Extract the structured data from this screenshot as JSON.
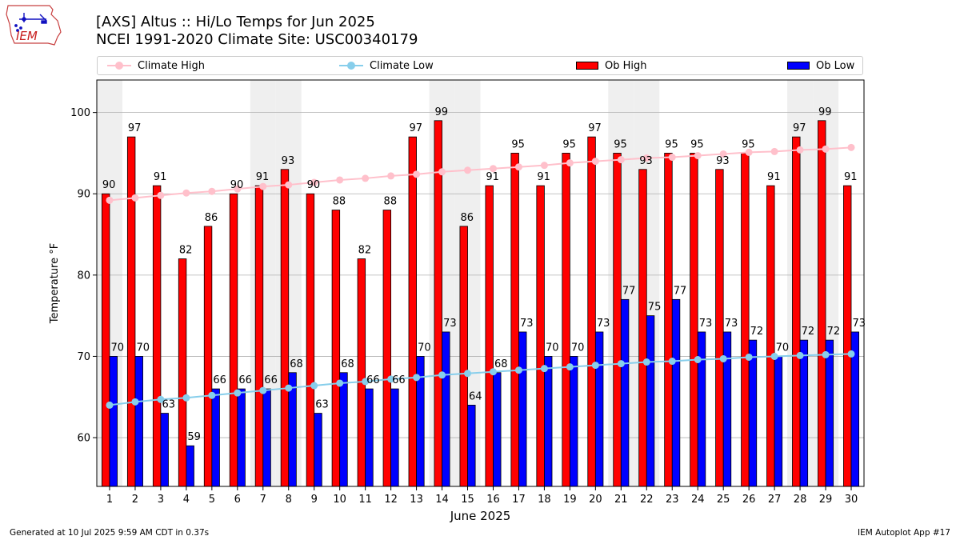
{
  "header": {
    "logo_text": "IEM",
    "title_line1": "[AXS] Altus :: Hi/Lo Temps for Jun 2025",
    "title_line2": "NCEI 1991-2020 Climate Site: USC00340179"
  },
  "legend": {
    "placement": "top",
    "items": [
      {
        "label": "Climate High",
        "kind": "line",
        "color": "#ffc0cb"
      },
      {
        "label": "Climate Low",
        "kind": "line",
        "color": "#87ceeb"
      },
      {
        "label": "Ob High",
        "kind": "bar",
        "color": "#ff0000"
      },
      {
        "label": "Ob Low",
        "kind": "bar",
        "color": "#0000ff"
      }
    ]
  },
  "footer": {
    "left": "Generated at 10 Jul 2025 9:59 AM CDT in 0.37s",
    "right": "IEM Autoplot App #17"
  },
  "chart_data": {
    "type": "bar",
    "xlabel": "June 2025",
    "ylabel": "Temperature °F",
    "ylim": [
      54,
      104
    ],
    "yticks": [
      60,
      70,
      80,
      90,
      100
    ],
    "grid": "horizontal",
    "categories": [
      "1",
      "2",
      "3",
      "4",
      "5",
      "6",
      "7",
      "8",
      "9",
      "10",
      "11",
      "12",
      "13",
      "14",
      "15",
      "16",
      "17",
      "18",
      "19",
      "20",
      "21",
      "22",
      "23",
      "24",
      "25",
      "26",
      "27",
      "28",
      "29",
      "30"
    ],
    "weekend_shaded_days": [
      1,
      7,
      8,
      14,
      15,
      21,
      22,
      28,
      29
    ],
    "series": [
      {
        "name": "Ob High",
        "type": "bar",
        "color": "#ff0000",
        "values": [
          90,
          97,
          91,
          82,
          86,
          90,
          91,
          93,
          90,
          88,
          82,
          88,
          97,
          99,
          86,
          91,
          95,
          91,
          95,
          97,
          95,
          93,
          95,
          95,
          93,
          95,
          91,
          97,
          99,
          91
        ]
      },
      {
        "name": "Ob Low",
        "type": "bar",
        "color": "#0000ff",
        "values": [
          70,
          70,
          63,
          59,
          66,
          66,
          66,
          68,
          63,
          68,
          66,
          66,
          70,
          73,
          64,
          68,
          73,
          70,
          70,
          73,
          77,
          75,
          77,
          73,
          73,
          72,
          70,
          72,
          72,
          73
        ]
      },
      {
        "name": "Climate High",
        "type": "line",
        "color": "#ffc0cb",
        "values": [
          89.2,
          89.5,
          89.8,
          90.1,
          90.3,
          90.6,
          90.9,
          91.1,
          91.4,
          91.7,
          91.9,
          92.2,
          92.4,
          92.7,
          92.9,
          93.1,
          93.3,
          93.5,
          93.8,
          94.0,
          94.2,
          94.4,
          94.5,
          94.7,
          94.9,
          95.1,
          95.2,
          95.4,
          95.5,
          95.7
        ]
      },
      {
        "name": "Climate Low",
        "type": "line",
        "color": "#87ceeb",
        "values": [
          64.0,
          64.4,
          64.7,
          64.9,
          65.2,
          65.5,
          65.8,
          66.1,
          66.4,
          66.7,
          66.9,
          67.2,
          67.4,
          67.7,
          67.9,
          68.1,
          68.3,
          68.5,
          68.7,
          68.9,
          69.1,
          69.3,
          69.4,
          69.6,
          69.7,
          69.9,
          70.0,
          70.1,
          70.2,
          70.3
        ]
      }
    ]
  }
}
